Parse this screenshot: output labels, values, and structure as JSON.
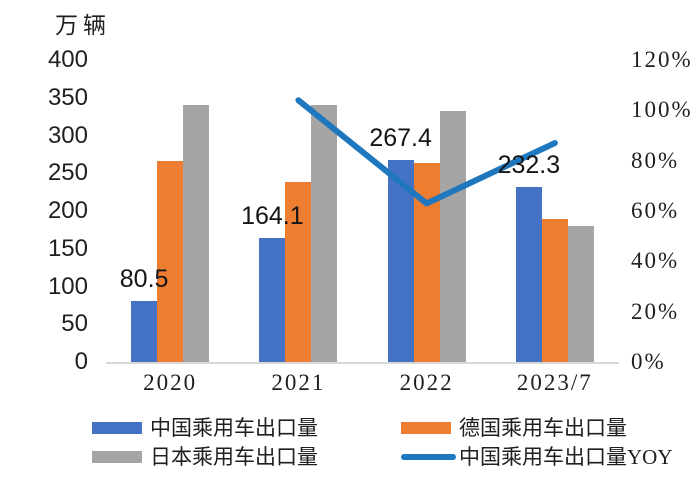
{
  "chart_data": {
    "type": "bar",
    "subtype": "grouped-bars-with-line-overlay",
    "title": "",
    "unit_label": "万辆",
    "categories": [
      "2020",
      "2021",
      "2022",
      "2023/7"
    ],
    "series": [
      {
        "name": "中国乘用车出口量",
        "kind": "bar",
        "color": "#4472C4",
        "axis": "left",
        "values": [
          80.5,
          164.1,
          267.4,
          232.3
        ],
        "data_labels": [
          "80.5",
          "164.1",
          "267.4",
          "232.3"
        ]
      },
      {
        "name": "德国乘用车出口量",
        "kind": "bar",
        "color": "#ED7D31",
        "axis": "left",
        "values": [
          266,
          238,
          264,
          189
        ],
        "data_labels": null
      },
      {
        "name": "日本乘用车出口量",
        "kind": "bar",
        "color": "#A5A5A5",
        "axis": "left",
        "values": [
          340,
          340,
          333,
          180
        ],
        "data_labels": null
      },
      {
        "name": "中国乘用车出口量YOY",
        "kind": "line",
        "color": "#1F78BE",
        "axis": "right",
        "values": [
          null,
          104,
          63,
          87
        ],
        "unit": "%"
      }
    ],
    "left_axis": {
      "min": 0,
      "max": 400,
      "step": 50,
      "ticks": [
        "0",
        "50",
        "100",
        "150",
        "200",
        "250",
        "300",
        "350",
        "400"
      ]
    },
    "right_axis": {
      "min": 0,
      "max": 120,
      "step": 20,
      "ticks": [
        "0%",
        "20%",
        "40%",
        "60%",
        "80%",
        "100%",
        "120%"
      ]
    },
    "grid": false,
    "legend_position": "bottom",
    "colors": {
      "axis_line": "#d8d8d8",
      "text": "#1f1f1f",
      "background": "#ffffff"
    }
  }
}
